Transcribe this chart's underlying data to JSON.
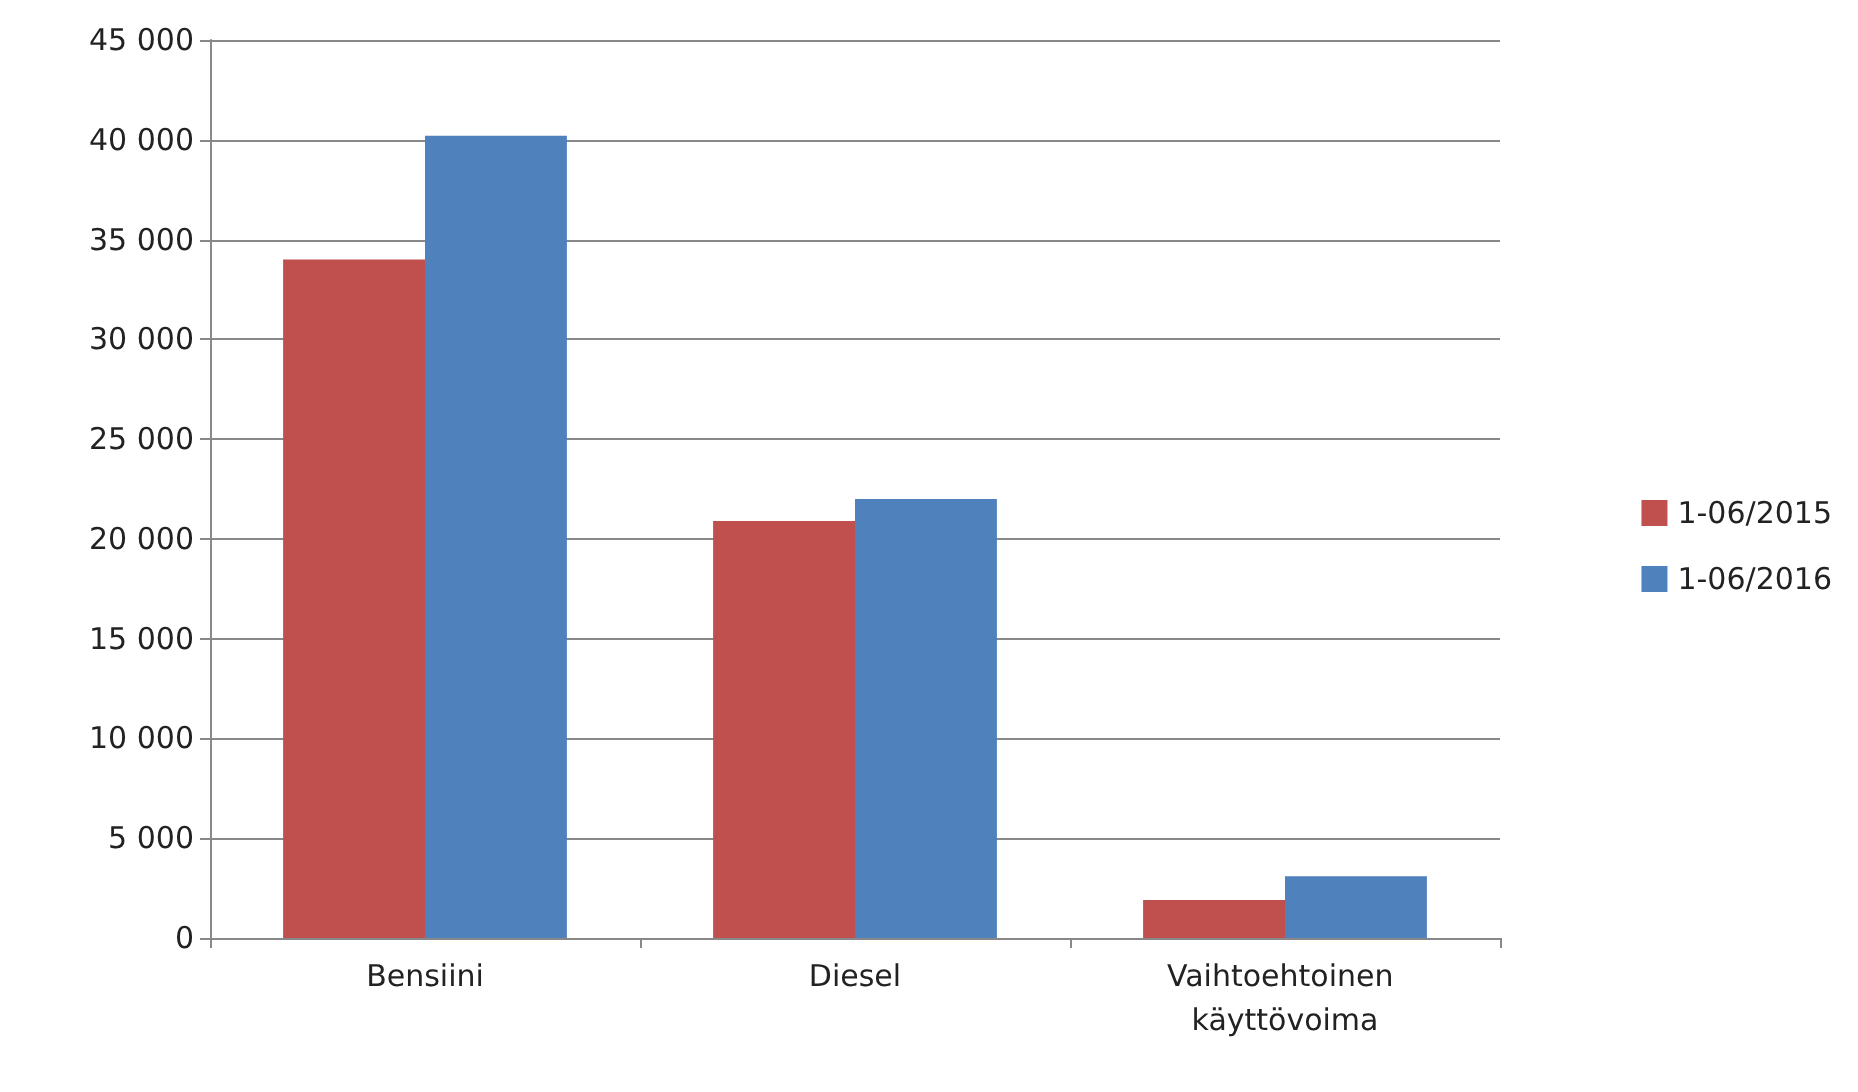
{
  "chart_data": {
    "type": "bar",
    "categories": [
      "Bensiini",
      "Diesel",
      "Vaihtoehtoinen käyttövoima"
    ],
    "series": [
      {
        "name": "1-06/2015",
        "color": "#c0504d",
        "values": [
          34000,
          20900,
          1900
        ]
      },
      {
        "name": "1-06/2016",
        "color": "#4f81bd",
        "values": [
          40200,
          22000,
          3100
        ]
      }
    ],
    "ylim": [
      0,
      45000
    ],
    "yticks": [
      {
        "value": 0,
        "label": "0"
      },
      {
        "value": 5000,
        "label": "5 000"
      },
      {
        "value": 10000,
        "label": "10 000"
      },
      {
        "value": 15000,
        "label": "15 000"
      },
      {
        "value": 20000,
        "label": "20 000"
      },
      {
        "value": 25000,
        "label": "25 000"
      },
      {
        "value": 30000,
        "label": "30 000"
      },
      {
        "value": 35000,
        "label": "35 000"
      },
      {
        "value": 40000,
        "label": "40 000"
      },
      {
        "value": 45000,
        "label": "45 000"
      }
    ],
    "grid": "y",
    "legend": "right"
  }
}
